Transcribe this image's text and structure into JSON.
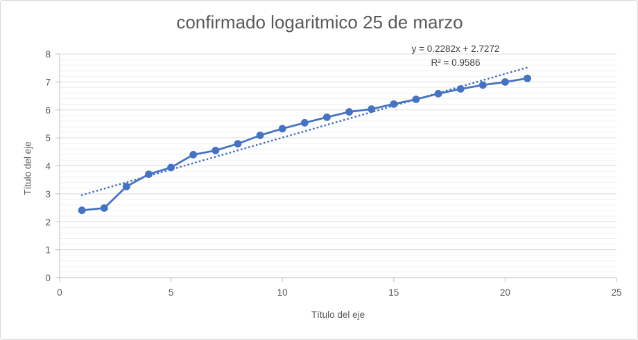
{
  "chart_data": {
    "type": "line",
    "title": "confirmado logaritmico 25 de marzo",
    "xlabel": "Título del eje",
    "ylabel": "Título del eje",
    "x": [
      1,
      2,
      3,
      4,
      5,
      6,
      7,
      8,
      9,
      10,
      11,
      12,
      13,
      14,
      15,
      16,
      17,
      18,
      19,
      20,
      21
    ],
    "values": [
      2.41,
      2.49,
      3.26,
      3.7,
      3.94,
      4.4,
      4.55,
      4.79,
      5.09,
      5.33,
      5.54,
      5.74,
      5.93,
      6.03,
      6.21,
      6.38,
      6.58,
      6.75,
      6.89,
      7.0,
      7.13
    ],
    "trendline": {
      "style": "dotted-linear",
      "slope": 0.2282,
      "intercept": 2.7272,
      "x_start": 1,
      "x_end": 21,
      "label": "y = 0.2282x + 2.7272",
      "r2_label": "R² = 0.9586",
      "r2_value": 0.9586
    },
    "xlim": [
      0,
      25
    ],
    "ylim": [
      0,
      8
    ],
    "x_ticks": [
      0,
      5,
      10,
      15,
      20,
      25
    ],
    "y_ticks": [
      0,
      1,
      2,
      3,
      4,
      5,
      6,
      7,
      8
    ],
    "y_minor_step": 0.2,
    "grid": "horizontal-major-and-minor",
    "legend": "none",
    "marker": "circle",
    "colors": {
      "series": "#4472C4",
      "trendline": "#4472C4",
      "major_grid": "#D9D9D9",
      "minor_grid": "#F0F0F0",
      "axis": "#BFBFBF",
      "tick_text": "#595959",
      "title_text": "#595959",
      "equation_text": "#404040"
    }
  }
}
